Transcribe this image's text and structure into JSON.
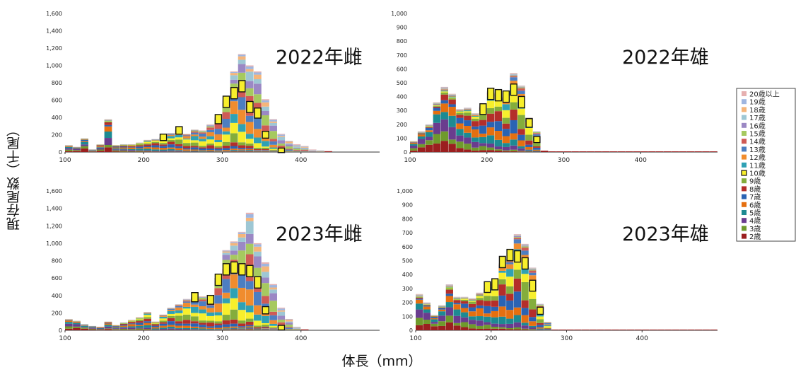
{
  "axes": {
    "y_title": "現存尾数（千尾）",
    "x_title": "体長（mm）"
  },
  "legend": {
    "labels": [
      "20歳以上",
      "19歳",
      "18歳",
      "17歳",
      "16歳",
      "15歳",
      "14歳",
      "13歳",
      "12歳",
      "11歳",
      "10歳",
      "9歳",
      "8歳",
      "7歳",
      "6歳",
      "5歳",
      "4歳",
      "3歳",
      "2歳"
    ],
    "colors": [
      "#e6b0b0",
      "#9fb6e0",
      "#f5b57a",
      "#9ec7d4",
      "#9b88c4",
      "#a6c95f",
      "#cf5a55",
      "#4d7ec1",
      "#f08c2e",
      "#2fa1b4",
      "#f7ef2c",
      "#84ad3c",
      "#b42e2a",
      "#2a63b3",
      "#e56f10",
      "#1d8a92",
      "#6a3c8e",
      "#6f9a2c",
      "#9b1f1f"
    ]
  },
  "chart_data": [
    {
      "type": "bar",
      "title": "2022年雌",
      "xlim": [
        100,
        500
      ],
      "ylim": [
        0,
        1600
      ],
      "x_ticks": [
        100,
        200,
        300,
        400
      ],
      "y_ticks": [
        "0",
        "200",
        "400",
        "600",
        "800",
        "1,000",
        "1,200",
        "1,400",
        "1,600"
      ],
      "x": [
        100,
        110,
        120,
        130,
        140,
        150,
        160,
        170,
        180,
        190,
        200,
        210,
        220,
        230,
        240,
        250,
        260,
        270,
        280,
        290,
        300,
        310,
        320,
        330,
        340,
        350,
        360,
        370,
        380,
        390,
        400,
        410,
        420,
        430,
        440,
        450,
        460,
        470,
        480,
        490
      ],
      "values": [
        80,
        60,
        160,
        30,
        90,
        380,
        80,
        90,
        90,
        110,
        140,
        150,
        170,
        220,
        260,
        210,
        260,
        250,
        320,
        400,
        600,
        930,
        1130,
        1000,
        930,
        610,
        380,
        210,
        130,
        90,
        70,
        30,
        20,
        10,
        0,
        0,
        0,
        0,
        0,
        0
      ],
      "age10_markers": [
        null,
        null,
        null,
        null,
        null,
        null,
        null,
        null,
        null,
        null,
        null,
        null,
        170,
        null,
        250,
        null,
        null,
        null,
        null,
        380,
        580,
        680,
        760,
        520,
        450,
        200,
        null,
        20,
        null,
        null,
        null,
        null,
        null,
        null,
        null,
        null,
        null,
        null,
        null,
        null
      ]
    },
    {
      "type": "bar",
      "title": "2022年雄",
      "xlim": [
        100,
        500
      ],
      "ylim": [
        0,
        1000
      ],
      "x_ticks": [
        100,
        200,
        300,
        400
      ],
      "y_ticks": [
        "0",
        "100",
        "200",
        "300",
        "400",
        "500",
        "600",
        "700",
        "800",
        "900",
        "1,000"
      ],
      "x": [
        100,
        110,
        120,
        130,
        140,
        150,
        160,
        170,
        180,
        190,
        200,
        210,
        220,
        230,
        240,
        250,
        260,
        270,
        280,
        290,
        300,
        310,
        320,
        330,
        340,
        350,
        360,
        370,
        380,
        390,
        400,
        410,
        420,
        430,
        440,
        450,
        460,
        470,
        480,
        490
      ],
      "values": [
        80,
        150,
        200,
        360,
        470,
        420,
        310,
        320,
        280,
        330,
        440,
        430,
        400,
        570,
        480,
        250,
        150,
        10,
        5,
        5,
        5,
        5,
        5,
        5,
        5,
        5,
        5,
        5,
        5,
        5,
        5,
        5,
        5,
        5,
        5,
        5,
        5,
        5,
        5,
        5
      ],
      "age10_markers": [
        null,
        null,
        null,
        null,
        null,
        null,
        null,
        null,
        null,
        310,
        420,
        410,
        400,
        450,
        360,
        210,
        90,
        null,
        null,
        null,
        null,
        null,
        null,
        null,
        null,
        null,
        null,
        null,
        null,
        null,
        null,
        null,
        null,
        null,
        null,
        null,
        null,
        null,
        null,
        null
      ]
    },
    {
      "type": "bar",
      "title": "2023年雌",
      "xlim": [
        100,
        500
      ],
      "ylim": [
        0,
        1600
      ],
      "x_ticks": [
        100,
        200,
        300,
        400
      ],
      "y_ticks": [
        "0",
        "200",
        "400",
        "600",
        "800",
        "1,000",
        "1,200",
        "1,400",
        "1,600"
      ],
      "x": [
        100,
        110,
        120,
        130,
        140,
        150,
        160,
        170,
        180,
        190,
        200,
        210,
        220,
        230,
        240,
        250,
        260,
        270,
        280,
        290,
        300,
        310,
        320,
        330,
        340,
        350,
        360,
        370,
        380,
        390,
        400,
        410,
        420,
        430,
        440,
        450,
        460,
        470,
        480,
        490
      ],
      "values": [
        130,
        110,
        70,
        50,
        40,
        100,
        60,
        90,
        120,
        150,
        210,
        100,
        180,
        260,
        300,
        360,
        380,
        390,
        360,
        600,
        920,
        1020,
        1130,
        1350,
        1000,
        780,
        530,
        260,
        130,
        40,
        10,
        0,
        0,
        0,
        0,
        0,
        0,
        0,
        0,
        0
      ],
      "age10_markers": [
        null,
        null,
        null,
        null,
        null,
        null,
        null,
        null,
        null,
        null,
        null,
        null,
        null,
        null,
        null,
        null,
        380,
        null,
        350,
        580,
        700,
        720,
        700,
        680,
        550,
        230,
        null,
        30,
        null,
        null,
        null,
        null,
        null,
        null,
        null,
        null,
        null,
        null,
        null,
        null
      ]
    },
    {
      "type": "bar",
      "title": "2023年雄",
      "xlim": [
        100,
        500
      ],
      "ylim": [
        0,
        1000
      ],
      "x_ticks": [
        100,
        200,
        300,
        400
      ],
      "y_ticks": [
        "0",
        "100",
        "200",
        "300",
        "400",
        "500",
        "600",
        "700",
        "800",
        "900",
        "1,000"
      ],
      "x": [
        100,
        110,
        120,
        130,
        140,
        150,
        160,
        170,
        180,
        190,
        200,
        210,
        220,
        230,
        240,
        250,
        260,
        270,
        280,
        290,
        300,
        310,
        320,
        330,
        340,
        350,
        360,
        370,
        380,
        390,
        400,
        410,
        420,
        430,
        440,
        450,
        460,
        470,
        480,
        490
      ],
      "values": [
        260,
        200,
        110,
        180,
        330,
        240,
        240,
        230,
        270,
        300,
        340,
        480,
        510,
        690,
        620,
        450,
        190,
        60,
        5,
        5,
        5,
        5,
        5,
        5,
        5,
        5,
        5,
        5,
        5,
        5,
        5,
        5,
        5,
        5,
        5,
        5,
        5,
        5,
        5,
        5
      ],
      "age10_markers": [
        null,
        null,
        null,
        null,
        null,
        null,
        null,
        null,
        null,
        310,
        330,
        490,
        540,
        530,
        480,
        320,
        140,
        null,
        null,
        null,
        null,
        null,
        null,
        null,
        null,
        null,
        null,
        null,
        null,
        null,
        null,
        null,
        null,
        null,
        null,
        null,
        null,
        null,
        null,
        null
      ]
    }
  ]
}
